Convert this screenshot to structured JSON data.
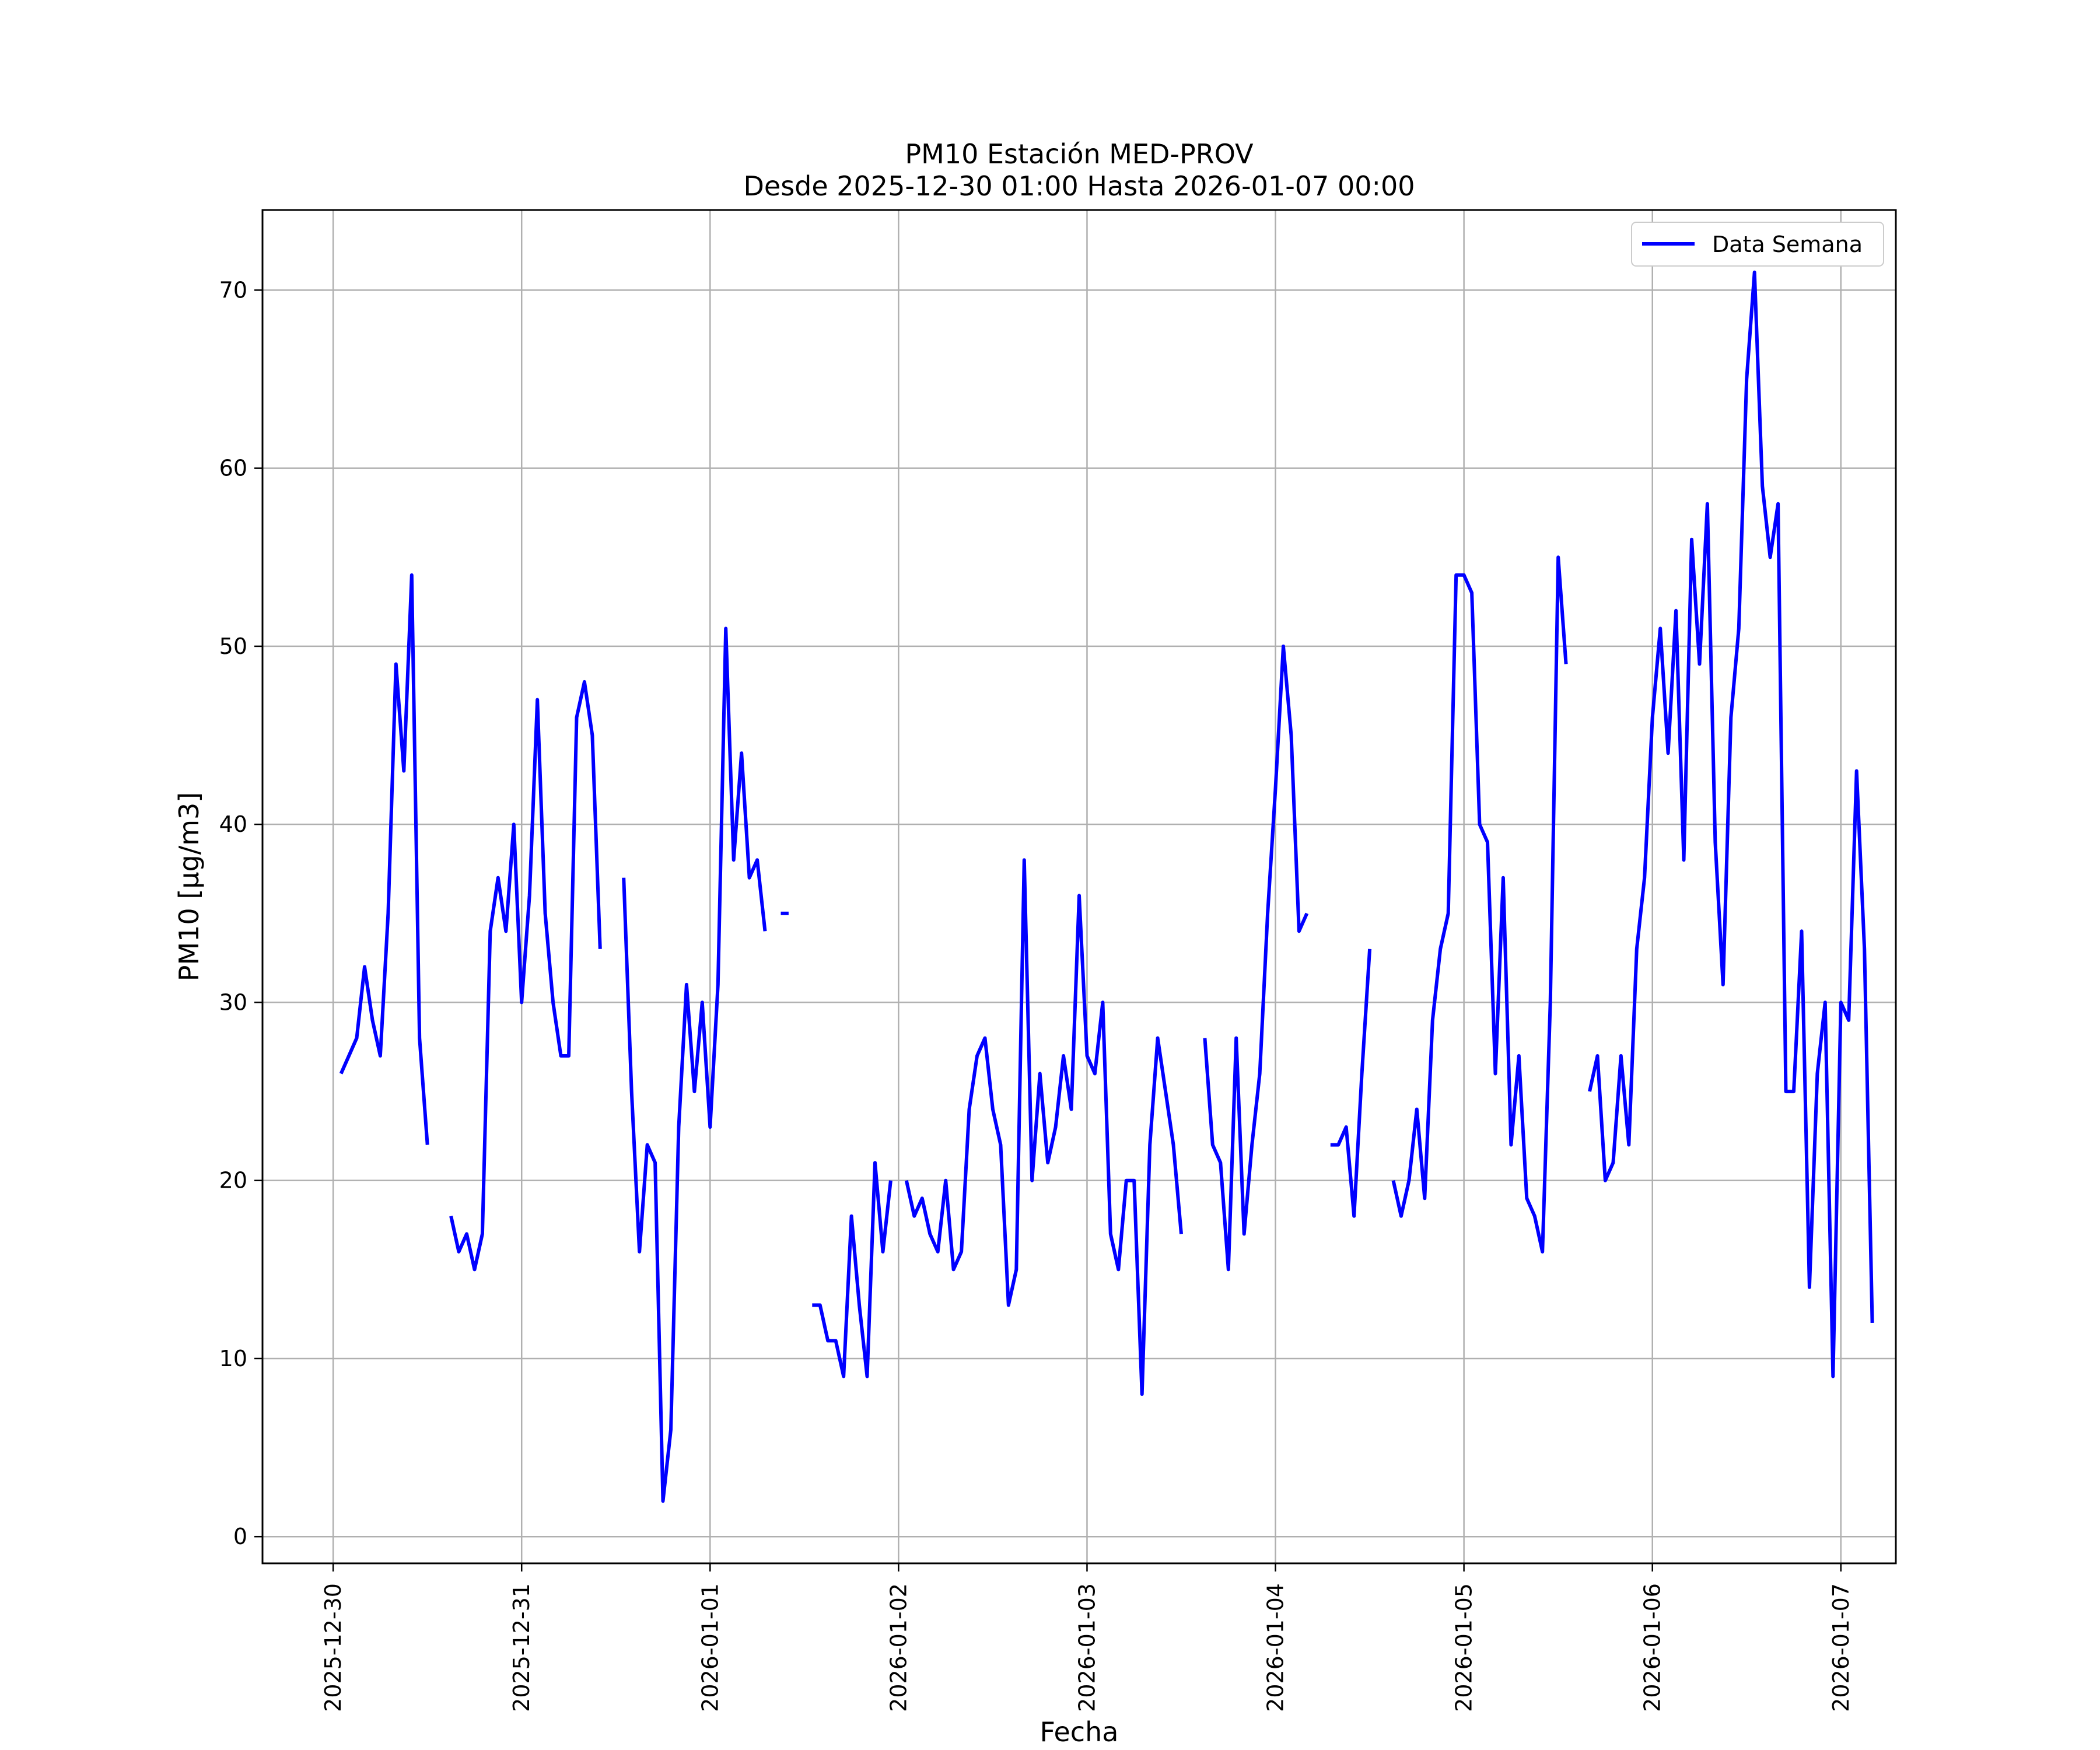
{
  "chart_data": {
    "type": "line",
    "title": "PM10 Estación MED-PROV",
    "subtitle": "Desde 2025-12-30 01:00 Hasta 2026-01-07 00:00",
    "xlabel": "Fecha",
    "ylabel": "PM10 [μg/m3]",
    "xlim": [
      "2025-12-29 15:00",
      "2026-01-07 07:00"
    ],
    "ylim": [
      -1.5,
      74.5
    ],
    "x_ticks": [
      "2025-12-30",
      "2025-12-31",
      "2026-01-01",
      "2026-01-02",
      "2026-01-03",
      "2026-01-04",
      "2026-01-05",
      "2026-01-06",
      "2026-01-07"
    ],
    "y_ticks": [
      0,
      10,
      20,
      30,
      40,
      50,
      60,
      70
    ],
    "grid": true,
    "legend_position": "top-right",
    "series": [
      {
        "name": "Data Semana",
        "color": "#0000ff",
        "start": "2025-12-30 01:00",
        "step_hours": 1,
        "values": [
          26,
          27,
          28,
          32,
          29,
          27,
          35,
          49,
          43,
          54,
          28,
          22,
          null,
          null,
          18,
          16,
          17,
          15,
          17,
          34,
          37,
          34,
          40,
          30,
          36,
          47,
          35,
          30,
          27,
          27,
          46,
          48,
          45,
          33,
          null,
          null,
          37,
          25,
          16,
          22,
          21,
          2,
          6,
          23,
          31,
          25,
          30,
          23,
          31,
          51,
          38,
          44,
          37,
          38,
          34,
          null,
          35,
          35,
          null,
          null,
          13,
          13,
          11,
          11,
          9,
          18,
          13,
          9,
          21,
          16,
          20,
          null,
          20,
          18,
          19,
          17,
          16,
          20,
          15,
          16,
          24,
          27,
          28,
          24,
          22,
          13,
          15,
          38,
          20,
          26,
          21,
          23,
          27,
          24,
          36,
          27,
          26,
          30,
          17,
          15,
          20,
          20,
          8,
          22,
          28,
          25,
          22,
          17,
          null,
          null,
          28,
          22,
          21,
          15,
          28,
          17,
          22,
          26,
          35,
          42,
          50,
          45,
          34,
          35,
          null,
          null,
          22,
          22,
          23,
          18,
          26,
          33,
          null,
          null,
          20,
          18,
          20,
          24,
          19,
          29,
          33,
          35,
          54,
          54,
          53,
          40,
          39,
          26,
          37,
          22,
          27,
          19,
          18,
          16,
          30,
          55,
          49,
          null,
          null,
          25,
          27,
          20,
          21,
          27,
          22,
          33,
          37,
          46,
          51,
          44,
          52,
          38,
          56,
          49,
          58,
          39,
          31,
          46,
          51,
          65,
          71,
          59,
          55,
          58,
          25,
          25,
          34,
          14,
          26,
          30,
          9,
          30,
          29,
          43,
          33,
          12
        ]
      }
    ]
  }
}
